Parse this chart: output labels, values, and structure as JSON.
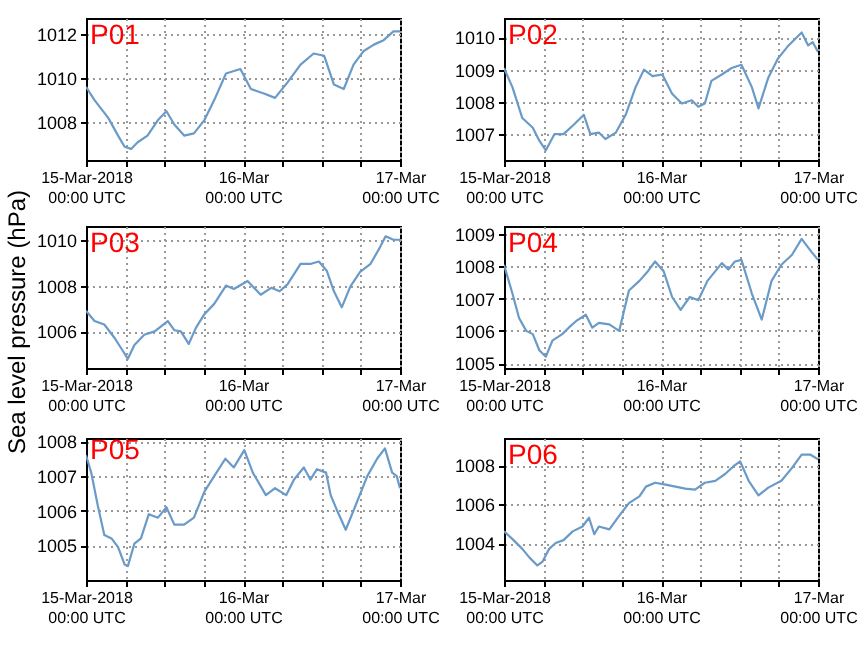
{
  "chart_data": [
    {
      "type": "line",
      "title": "P01",
      "x": [
        "2018-03-15T00:00",
        "2018-03-15T01:18",
        "2018-03-15T03:24",
        "2018-03-15T04:54",
        "2018-03-15T05:54",
        "2018-03-15T06:54",
        "2018-03-15T07:54",
        "2018-03-15T09:24",
        "2018-03-15T11:00",
        "2018-03-15T12:18",
        "2018-03-15T13:30",
        "2018-03-15T15:00",
        "2018-03-15T16:30",
        "2018-03-15T18:06",
        "2018-03-15T19:36",
        "2018-03-15T21:24",
        "2018-03-15T23:36",
        "2018-03-16T01:12",
        "2018-03-16T03:12",
        "2018-03-16T04:54",
        "2018-03-16T06:48",
        "2018-03-16T08:48",
        "2018-03-16T10:48",
        "2018-03-16T12:24",
        "2018-03-16T13:54",
        "2018-03-16T15:24",
        "2018-03-16T16:54",
        "2018-03-16T18:24",
        "2018-03-16T20:00",
        "2018-03-16T21:30",
        "2018-03-16T23:00",
        "2018-03-17T00:00"
      ],
      "series": [
        {
          "color": "#6a9ac8",
          "values": [
            1009.6,
            1009.0,
            1008.2,
            1007.4,
            1006.9,
            1006.8,
            1007.1,
            1007.4,
            1008.1,
            1008.5,
            1007.9,
            1007.4,
            1007.5,
            1008.1,
            1009.0,
            1010.2,
            1010.4,
            1009.5,
            1009.3,
            1009.1,
            1009.8,
            1010.6,
            1011.1,
            1011.0,
            1009.7,
            1009.5,
            1010.6,
            1011.2,
            1011.5,
            1011.7,
            1012.1,
            1012.1
          ]
        }
      ],
      "xlim": [
        "2018-03-15T00:00",
        "2018-03-17T00:00"
      ],
      "xticks": [
        {
          "value": "2018-03-15T00:00",
          "label": "15-Mar-2018\n00:00 UTC"
        },
        {
          "value": "2018-03-15T06:00",
          "label": null
        },
        {
          "value": "2018-03-15T12:00",
          "label": null
        },
        {
          "value": "2018-03-15T18:00",
          "label": null
        },
        {
          "value": "2018-03-16T00:00",
          "label": "16-Mar\n00:00 UTC"
        },
        {
          "value": "2018-03-16T06:00",
          "label": null
        },
        {
          "value": "2018-03-16T12:00",
          "label": null
        },
        {
          "value": "2018-03-16T18:00",
          "label": null
        },
        {
          "value": "2018-03-17T00:00",
          "label": "17-Mar\n00:00 UTC"
        }
      ],
      "ylim": [
        1006.3,
        1012.7
      ],
      "yticks": [
        1008,
        1010,
        1012
      ],
      "grid": true
    },
    {
      "type": "line",
      "title": "P02",
      "x": [
        "2018-03-15T00:00",
        "2018-03-15T01:18",
        "2018-03-15T02:48",
        "2018-03-15T04:24",
        "2018-03-15T05:24",
        "2018-03-15T06:24",
        "2018-03-15T07:42",
        "2018-03-15T09:06",
        "2018-03-15T10:42",
        "2018-03-15T12:12",
        "2018-03-15T13:12",
        "2018-03-15T14:30",
        "2018-03-15T15:30",
        "2018-03-15T17:06",
        "2018-03-15T18:36",
        "2018-03-15T20:06",
        "2018-03-15T21:24",
        "2018-03-15T22:42",
        "2018-03-16T00:12",
        "2018-03-16T01:42",
        "2018-03-16T03:12",
        "2018-03-16T04:42",
        "2018-03-16T05:42",
        "2018-03-16T06:42",
        "2018-03-16T07:42",
        "2018-03-16T09:18",
        "2018-03-16T10:48",
        "2018-03-16T12:18",
        "2018-03-16T13:54",
        "2018-03-16T14:54",
        "2018-03-16T16:24",
        "2018-03-16T17:54",
        "2018-03-16T19:30",
        "2018-03-16T21:30",
        "2018-03-16T22:30",
        "2018-03-16T23:12",
        "2018-03-17T00:00"
      ],
      "series": [
        {
          "color": "#6a9ac8",
          "values": [
            1009.05,
            1008.45,
            1007.5,
            1007.2,
            1006.8,
            1006.5,
            1007.0,
            1007.0,
            1007.3,
            1007.6,
            1007.0,
            1007.05,
            1006.85,
            1007.05,
            1007.6,
            1008.45,
            1009.0,
            1008.8,
            1008.85,
            1008.25,
            1007.95,
            1008.05,
            1007.85,
            1007.95,
            1008.65,
            1008.85,
            1009.05,
            1009.15,
            1008.45,
            1007.8,
            1008.75,
            1009.35,
            1009.75,
            1010.15,
            1009.75,
            1009.85,
            1009.55
          ]
        }
      ],
      "xlim": [
        "2018-03-15T00:00",
        "2018-03-17T00:00"
      ],
      "xticks": [
        {
          "value": "2018-03-15T00:00",
          "label": "15-Mar-2018\n00:00 UTC"
        },
        {
          "value": "2018-03-15T06:00",
          "label": null
        },
        {
          "value": "2018-03-15T12:00",
          "label": null
        },
        {
          "value": "2018-03-15T18:00",
          "label": null
        },
        {
          "value": "2018-03-16T00:00",
          "label": "16-Mar\n00:00 UTC"
        },
        {
          "value": "2018-03-16T06:00",
          "label": null
        },
        {
          "value": "2018-03-16T12:00",
          "label": null
        },
        {
          "value": "2018-03-16T18:00",
          "label": null
        },
        {
          "value": "2018-03-17T00:00",
          "label": "17-Mar\n00:00 UTC"
        }
      ],
      "ylim": [
        1006.2,
        1010.6
      ],
      "yticks": [
        1007,
        1008,
        1009,
        1010
      ],
      "grid": true
    },
    {
      "type": "line",
      "title": "P03",
      "ylabel": "Sea level pressure (hPa)",
      "x": [
        "2018-03-15T00:00",
        "2018-03-15T01:18",
        "2018-03-15T02:48",
        "2018-03-15T04:24",
        "2018-03-15T05:24",
        "2018-03-15T06:24",
        "2018-03-15T07:24",
        "2018-03-15T08:54",
        "2018-03-15T10:30",
        "2018-03-15T12:30",
        "2018-03-15T13:30",
        "2018-03-15T14:30",
        "2018-03-15T15:42",
        "2018-03-15T16:48",
        "2018-03-15T18:06",
        "2018-03-15T19:36",
        "2018-03-15T21:24",
        "2018-03-15T22:36",
        "2018-03-16T00:42",
        "2018-03-16T02:42",
        "2018-03-16T04:18",
        "2018-03-16T05:36",
        "2018-03-16T06:48",
        "2018-03-16T08:48",
        "2018-03-16T10:24",
        "2018-03-16T11:36",
        "2018-03-16T12:48",
        "2018-03-16T13:54",
        "2018-03-16T15:06",
        "2018-03-16T16:24",
        "2018-03-16T17:54",
        "2018-03-16T19:30",
        "2018-03-16T21:00",
        "2018-03-16T21:48",
        "2018-03-16T23:00",
        "2018-03-17T00:00"
      ],
      "series": [
        {
          "color": "#6a9ac8",
          "values": [
            1006.9,
            1006.45,
            1006.3,
            1005.7,
            1005.25,
            1004.8,
            1005.4,
            1005.85,
            1006.0,
            1006.45,
            1006.05,
            1006.0,
            1005.45,
            1006.15,
            1006.75,
            1007.2,
            1008.0,
            1007.85,
            1008.2,
            1007.6,
            1007.9,
            1007.75,
            1008.05,
            1008.95,
            1008.95,
            1009.05,
            1008.65,
            1007.75,
            1007.05,
            1007.95,
            1008.6,
            1008.95,
            1009.7,
            1010.15,
            1010.0,
            1010.0
          ]
        }
      ],
      "xlim": [
        "2018-03-15T00:00",
        "2018-03-17T00:00"
      ],
      "xticks": [
        {
          "value": "2018-03-15T00:00",
          "label": "15-Mar-2018\n00:00 UTC"
        },
        {
          "value": "2018-03-15T06:00",
          "label": null
        },
        {
          "value": "2018-03-15T12:00",
          "label": null
        },
        {
          "value": "2018-03-15T18:00",
          "label": null
        },
        {
          "value": "2018-03-16T00:00",
          "label": "16-Mar\n00:00 UTC"
        },
        {
          "value": "2018-03-16T06:00",
          "label": null
        },
        {
          "value": "2018-03-16T12:00",
          "label": null
        },
        {
          "value": "2018-03-16T18:00",
          "label": null
        },
        {
          "value": "2018-03-17T00:00",
          "label": "17-Mar\n00:00 UTC"
        }
      ],
      "ylim": [
        1004.4,
        1010.6
      ],
      "yticks": [
        1006,
        1008,
        1010
      ],
      "grid": true
    },
    {
      "type": "line",
      "title": "P04",
      "x": [
        "2018-03-15T00:00",
        "2018-03-15T01:18",
        "2018-03-15T02:18",
        "2018-03-15T03:24",
        "2018-03-15T04:24",
        "2018-03-15T05:24",
        "2018-03-15T06:24",
        "2018-03-15T07:24",
        "2018-03-15T08:54",
        "2018-03-15T09:54",
        "2018-03-15T11:00",
        "2018-03-15T12:30",
        "2018-03-15T13:30",
        "2018-03-15T14:30",
        "2018-03-15T16:06",
        "2018-03-15T17:36",
        "2018-03-15T19:06",
        "2018-03-15T20:42",
        "2018-03-15T22:00",
        "2018-03-15T23:06",
        "2018-03-16T00:24",
        "2018-03-16T01:42",
        "2018-03-16T03:00",
        "2018-03-16T04:24",
        "2018-03-16T05:42",
        "2018-03-16T07:06",
        "2018-03-16T09:18",
        "2018-03-16T10:18",
        "2018-03-16T11:18",
        "2018-03-16T12:18",
        "2018-03-16T13:54",
        "2018-03-16T15:24",
        "2018-03-16T16:54",
        "2018-03-16T18:24",
        "2018-03-16T20:00",
        "2018-03-16T21:30",
        "2018-03-16T23:00",
        "2018-03-17T00:00"
      ],
      "series": [
        {
          "color": "#6a9ac8",
          "values": [
            1008.05,
            1007.15,
            1006.4,
            1006.0,
            1005.9,
            1005.4,
            1005.2,
            1005.7,
            1005.9,
            1006.1,
            1006.3,
            1006.5,
            1006.1,
            1006.25,
            1006.2,
            1006.0,
            1007.25,
            1007.55,
            1007.85,
            1008.15,
            1007.85,
            1007.05,
            1006.65,
            1007.05,
            1006.95,
            1007.55,
            1008.1,
            1007.9,
            1008.15,
            1008.2,
            1007.15,
            1006.35,
            1007.55,
            1008.05,
            1008.35,
            1008.85,
            1008.45,
            1008.2
          ]
        }
      ],
      "xlim": [
        "2018-03-15T00:00",
        "2018-03-17T00:00"
      ],
      "xticks": [
        {
          "value": "2018-03-15T00:00",
          "label": "15-Mar-2018\n00:00 UTC"
        },
        {
          "value": "2018-03-15T06:00",
          "label": null
        },
        {
          "value": "2018-03-15T12:00",
          "label": null
        },
        {
          "value": "2018-03-15T18:00",
          "label": null
        },
        {
          "value": "2018-03-16T00:00",
          "label": "16-Mar\n00:00 UTC"
        },
        {
          "value": "2018-03-16T06:00",
          "label": null
        },
        {
          "value": "2018-03-16T12:00",
          "label": null
        },
        {
          "value": "2018-03-16T18:00",
          "label": null
        },
        {
          "value": "2018-03-17T00:00",
          "label": "17-Mar\n00:00 UTC"
        }
      ],
      "ylim": [
        1004.85,
        1009.25
      ],
      "yticks": [
        1005,
        1006,
        1007,
        1008,
        1009
      ],
      "grid": true
    },
    {
      "type": "line",
      "title": "P05",
      "x": [
        "2018-03-15T00:00",
        "2018-03-15T00:48",
        "2018-03-15T01:48",
        "2018-03-15T02:48",
        "2018-03-15T03:54",
        "2018-03-15T04:54",
        "2018-03-15T05:54",
        "2018-03-15T06:24",
        "2018-03-15T07:24",
        "2018-03-15T08:24",
        "2018-03-15T09:36",
        "2018-03-15T11:00",
        "2018-03-15T12:18",
        "2018-03-15T13:30",
        "2018-03-15T15:00",
        "2018-03-15T16:30",
        "2018-03-15T18:06",
        "2018-03-15T19:36",
        "2018-03-15T21:18",
        "2018-03-15T22:36",
        "2018-03-16T00:12",
        "2018-03-16T01:30",
        "2018-03-16T03:30",
        "2018-03-16T04:54",
        "2018-03-16T06:36",
        "2018-03-16T07:48",
        "2018-03-16T09:18",
        "2018-03-16T10:18",
        "2018-03-16T11:18",
        "2018-03-16T12:42",
        "2018-03-16T13:24",
        "2018-03-16T14:24",
        "2018-03-16T15:42",
        "2018-03-16T17:06",
        "2018-03-16T19:00",
        "2018-03-16T20:30",
        "2018-03-16T21:42",
        "2018-03-16T22:48",
        "2018-03-16T23:30",
        "2018-03-17T00:00"
      ],
      "series": [
        {
          "color": "#6a9ac8",
          "values": [
            1007.6,
            1007.1,
            1006.15,
            1005.3,
            1005.2,
            1004.95,
            1004.45,
            1004.4,
            1005.05,
            1005.2,
            1005.9,
            1005.8,
            1006.1,
            1005.6,
            1005.6,
            1005.8,
            1006.55,
            1007.0,
            1007.5,
            1007.25,
            1007.75,
            1007.1,
            1006.45,
            1006.65,
            1006.45,
            1006.9,
            1007.25,
            1006.9,
            1007.2,
            1007.1,
            1006.45,
            1006.0,
            1005.45,
            1006.1,
            1007.0,
            1007.5,
            1007.8,
            1007.1,
            1007.0,
            1006.65
          ]
        }
      ],
      "xlim": [
        "2018-03-15T00:00",
        "2018-03-17T00:00"
      ],
      "xticks": [
        {
          "value": "2018-03-15T00:00",
          "label": "15-Mar-2018\n00:00 UTC"
        },
        {
          "value": "2018-03-15T06:00",
          "label": null
        },
        {
          "value": "2018-03-15T12:00",
          "label": null
        },
        {
          "value": "2018-03-15T18:00",
          "label": null
        },
        {
          "value": "2018-03-16T00:00",
          "label": "16-Mar\n00:00 UTC"
        },
        {
          "value": "2018-03-16T06:00",
          "label": null
        },
        {
          "value": "2018-03-16T12:00",
          "label": null
        },
        {
          "value": "2018-03-16T18:00",
          "label": null
        },
        {
          "value": "2018-03-17T00:00",
          "label": "17-Mar\n00:00 UTC"
        }
      ],
      "ylim": [
        1004.0,
        1008.1
      ],
      "yticks": [
        1005,
        1006,
        1007,
        1008
      ],
      "grid": true
    },
    {
      "type": "line",
      "title": "P06",
      "x": [
        "2018-03-15T00:00",
        "2018-03-15T01:18",
        "2018-03-15T02:48",
        "2018-03-15T03:54",
        "2018-03-15T05:06",
        "2018-03-15T05:54",
        "2018-03-15T06:54",
        "2018-03-15T07:54",
        "2018-03-15T09:06",
        "2018-03-15T10:30",
        "2018-03-15T12:00",
        "2018-03-15T13:00",
        "2018-03-15T13:48",
        "2018-03-15T14:30",
        "2018-03-15T16:06",
        "2018-03-15T17:36",
        "2018-03-15T19:06",
        "2018-03-15T20:42",
        "2018-03-15T21:42",
        "2018-03-15T23:06",
        "2018-03-16T00:42",
        "2018-03-16T02:12",
        "2018-03-16T03:42",
        "2018-03-16T05:12",
        "2018-03-16T06:42",
        "2018-03-16T08:18",
        "2018-03-16T09:48",
        "2018-03-16T11:06",
        "2018-03-16T12:06",
        "2018-03-16T13:24",
        "2018-03-16T14:54",
        "2018-03-16T16:24",
        "2018-03-16T18:24",
        "2018-03-16T20:00",
        "2018-03-16T21:30",
        "2018-03-16T22:48",
        "2018-03-17T00:00"
      ],
      "series": [
        {
          "color": "#6a9ac8",
          "values": [
            1004.6,
            1004.2,
            1003.7,
            1003.25,
            1002.85,
            1003.05,
            1003.7,
            1004.0,
            1004.15,
            1004.6,
            1004.85,
            1005.3,
            1004.45,
            1004.85,
            1004.7,
            1005.4,
            1006.05,
            1006.4,
            1006.9,
            1007.1,
            1007.0,
            1006.9,
            1006.8,
            1006.75,
            1007.1,
            1007.2,
            1007.55,
            1007.95,
            1008.2,
            1007.2,
            1006.45,
            1006.85,
            1007.2,
            1007.85,
            1008.55,
            1008.55,
            1008.3
          ]
        }
      ],
      "xlim": [
        "2018-03-15T00:00",
        "2018-03-17T00:00"
      ],
      "xticks": [
        {
          "value": "2018-03-15T00:00",
          "label": "15-Mar-2018\n00:00 UTC"
        },
        {
          "value": "2018-03-15T06:00",
          "label": null
        },
        {
          "value": "2018-03-15T12:00",
          "label": null
        },
        {
          "value": "2018-03-15T18:00",
          "label": null
        },
        {
          "value": "2018-03-16T00:00",
          "label": "16-Mar\n00:00 UTC"
        },
        {
          "value": "2018-03-16T06:00",
          "label": null
        },
        {
          "value": "2018-03-16T12:00",
          "label": null
        },
        {
          "value": "2018-03-16T18:00",
          "label": null
        },
        {
          "value": "2018-03-17T00:00",
          "label": "17-Mar\n00:00 UTC"
        }
      ],
      "ylim": [
        1002.1,
        1009.4
      ],
      "yticks": [
        1004,
        1006,
        1008
      ],
      "grid": true
    }
  ]
}
